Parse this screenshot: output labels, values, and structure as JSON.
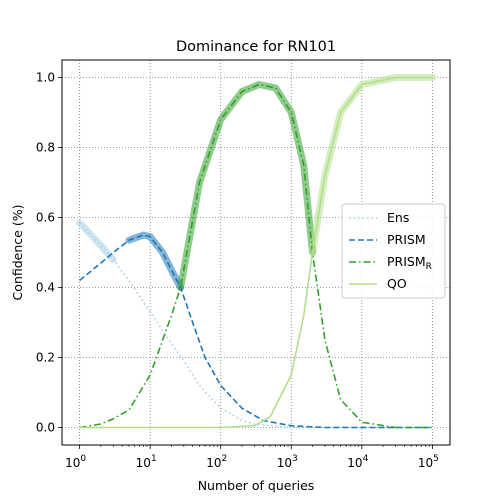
{
  "chart_data": {
    "type": "line",
    "title": "Dominance for RN101",
    "xlabel": "Number of queries",
    "ylabel": "Confidence (%)",
    "xscale": "log",
    "xlim": [
      1,
      100000
    ],
    "ylim": [
      -0.05,
      1.05
    ],
    "grid": true,
    "legend_placement": "center-right",
    "x_ticks": [
      {
        "base": "10",
        "exp": "0",
        "value": 1
      },
      {
        "base": "10",
        "exp": "1",
        "value": 10
      },
      {
        "base": "10",
        "exp": "2",
        "value": 100
      },
      {
        "base": "10",
        "exp": "3",
        "value": 1000
      },
      {
        "base": "10",
        "exp": "4",
        "value": 10000
      },
      {
        "base": "10",
        "exp": "5",
        "value": 100000
      }
    ],
    "y_ticks": [
      "0.0",
      "0.2",
      "0.4",
      "0.6",
      "0.8",
      "1.0"
    ],
    "series": [
      {
        "name": "Ens",
        "name_sub": "",
        "color": "#a6cee3",
        "style": "dotted",
        "x": [
          1,
          2,
          3,
          5,
          10,
          20,
          30,
          50,
          100,
          200,
          300,
          1000,
          10000,
          100000
        ],
        "y": [
          0.585,
          0.52,
          0.48,
          0.42,
          0.33,
          0.24,
          0.19,
          0.12,
          0.055,
          0.02,
          0.01,
          0.0,
          0.0,
          0.0
        ]
      },
      {
        "name": "PRISM",
        "name_sub": "",
        "color": "#1f78b4",
        "style": "dashed",
        "x": [
          1,
          2,
          3,
          5,
          8,
          10,
          15,
          20,
          27,
          40,
          60,
          100,
          200,
          400,
          1000,
          3000,
          10000,
          100000
        ],
        "y": [
          0.42,
          0.47,
          0.5,
          0.535,
          0.55,
          0.545,
          0.5,
          0.45,
          0.4,
          0.3,
          0.2,
          0.12,
          0.055,
          0.02,
          0.005,
          0.0,
          0.0,
          0.0
        ]
      },
      {
        "name": "PRISM",
        "name_sub": "R",
        "color": "#33a02c",
        "style": "dashdot",
        "x": [
          1,
          2,
          3,
          5,
          10,
          20,
          27,
          50,
          100,
          200,
          350,
          600,
          1000,
          1500,
          2000,
          3000,
          5000,
          10000,
          30000,
          100000
        ],
        "y": [
          0.0,
          0.01,
          0.025,
          0.05,
          0.15,
          0.32,
          0.4,
          0.7,
          0.88,
          0.96,
          0.98,
          0.97,
          0.9,
          0.75,
          0.5,
          0.25,
          0.08,
          0.015,
          0.0,
          0.0
        ]
      },
      {
        "name": "QO",
        "name_sub": "",
        "color": "#b2df8a",
        "style": "solid",
        "x": [
          1,
          10,
          100,
          300,
          500,
          1000,
          1500,
          2000,
          3000,
          5000,
          10000,
          30000,
          100000
        ],
        "y": [
          0.0,
          0.0,
          0.0,
          0.005,
          0.03,
          0.15,
          0.32,
          0.5,
          0.72,
          0.9,
          0.98,
          1.0,
          1.0
        ]
      }
    ],
    "dominant_envelope": {
      "color": "#b3b3b3",
      "x": [
        1,
        2,
        3,
        5,
        8,
        10,
        15,
        20,
        27,
        50,
        100,
        200,
        350,
        600,
        1000,
        1500,
        2000,
        3000,
        5000,
        10000,
        30000,
        100000
      ],
      "y": [
        0.585,
        0.52,
        0.5,
        0.535,
        0.55,
        0.545,
        0.5,
        0.45,
        0.4,
        0.7,
        0.88,
        0.96,
        0.98,
        0.97,
        0.9,
        0.75,
        0.5,
        0.72,
        0.9,
        0.98,
        1.0,
        1.0
      ]
    }
  }
}
